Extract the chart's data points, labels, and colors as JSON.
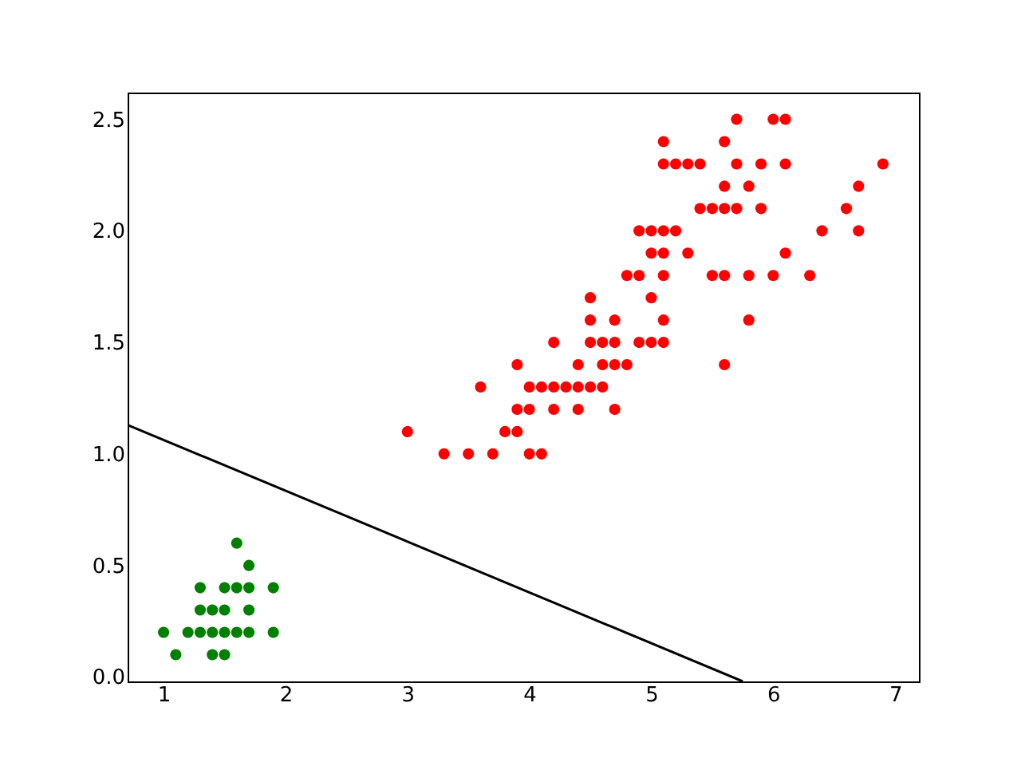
{
  "chart_data": {
    "type": "scatter",
    "xlim": [
      0.705,
      7.195
    ],
    "ylim": [
      -0.02,
      2.62
    ],
    "xticks": [
      1,
      2,
      3,
      4,
      5,
      6,
      7
    ],
    "yticks": [
      {
        "value": 0,
        "label": "0.0"
      },
      {
        "value": 0.5,
        "label": "0.5"
      },
      {
        "value": 1,
        "label": "1.0"
      },
      {
        "value": 1.5,
        "label": "1.5"
      },
      {
        "value": 2,
        "label": "2.0"
      },
      {
        "value": 2.5,
        "label": "2.5"
      }
    ],
    "grid": false,
    "series": [
      {
        "marker": "circle",
        "color": "#008000",
        "x": [
          1.0,
          1.1,
          1.2,
          1.3,
          1.3,
          1.3,
          1.4,
          1.4,
          1.4,
          1.5,
          1.5,
          1.5,
          1.5,
          1.6,
          1.6,
          1.6,
          1.7,
          1.7,
          1.7,
          1.7,
          1.9,
          1.9
        ],
        "values": [
          0.2,
          0.1,
          0.2,
          0.2,
          0.3,
          0.4,
          0.1,
          0.2,
          0.3,
          0.1,
          0.2,
          0.3,
          0.4,
          0.2,
          0.4,
          0.6,
          0.2,
          0.3,
          0.4,
          0.5,
          0.2,
          0.4
        ]
      },
      {
        "marker": "circle",
        "color": "#ff0000",
        "x": [
          3.0,
          3.3,
          3.5,
          3.6,
          3.7,
          3.8,
          3.9,
          3.9,
          3.9,
          4.0,
          4.0,
          4.0,
          4.1,
          4.1,
          4.2,
          4.2,
          4.2,
          4.3,
          4.4,
          4.4,
          4.4,
          4.5,
          4.5,
          4.5,
          4.5,
          4.6,
          4.6,
          4.6,
          4.7,
          4.7,
          4.7,
          4.7,
          4.8,
          4.8,
          4.9,
          4.9,
          4.9,
          5.0,
          5.0,
          5.0,
          5.0,
          5.1,
          5.1,
          5.1,
          5.1,
          5.1,
          5.1,
          5.1,
          5.2,
          5.2,
          5.3,
          5.3,
          5.4,
          5.4,
          5.5,
          5.5,
          5.6,
          5.6,
          5.6,
          5.6,
          5.6,
          5.7,
          5.7,
          5.7,
          5.8,
          5.8,
          5.8,
          5.9,
          5.9,
          6.0,
          6.0,
          6.1,
          6.1,
          6.1,
          6.3,
          6.4,
          6.6,
          6.7,
          6.7,
          6.9
        ],
        "values": [
          1.1,
          1.0,
          1.0,
          1.3,
          1.0,
          1.1,
          1.1,
          1.2,
          1.4,
          1.0,
          1.2,
          1.3,
          1.0,
          1.3,
          1.2,
          1.3,
          1.5,
          1.3,
          1.2,
          1.3,
          1.4,
          1.3,
          1.5,
          1.6,
          1.7,
          1.3,
          1.4,
          1.5,
          1.2,
          1.4,
          1.5,
          1.6,
          1.4,
          1.8,
          1.5,
          1.8,
          2.0,
          1.5,
          1.7,
          1.9,
          2.0,
          1.5,
          1.6,
          1.8,
          1.9,
          2.0,
          2.3,
          2.4,
          2.0,
          2.3,
          1.9,
          2.3,
          2.1,
          2.3,
          1.8,
          2.1,
          1.4,
          1.8,
          2.1,
          2.2,
          2.4,
          2.1,
          2.3,
          2.5,
          1.6,
          1.8,
          2.2,
          2.1,
          2.3,
          1.8,
          2.5,
          1.9,
          2.3,
          2.5,
          1.8,
          2.0,
          2.1,
          2.0,
          2.2,
          2.3
        ]
      },
      {
        "type": "line",
        "marker": "none",
        "color": "#000000",
        "x": [
          0.705,
          5.75
        ],
        "values": [
          1.13,
          -0.02
        ]
      }
    ]
  }
}
